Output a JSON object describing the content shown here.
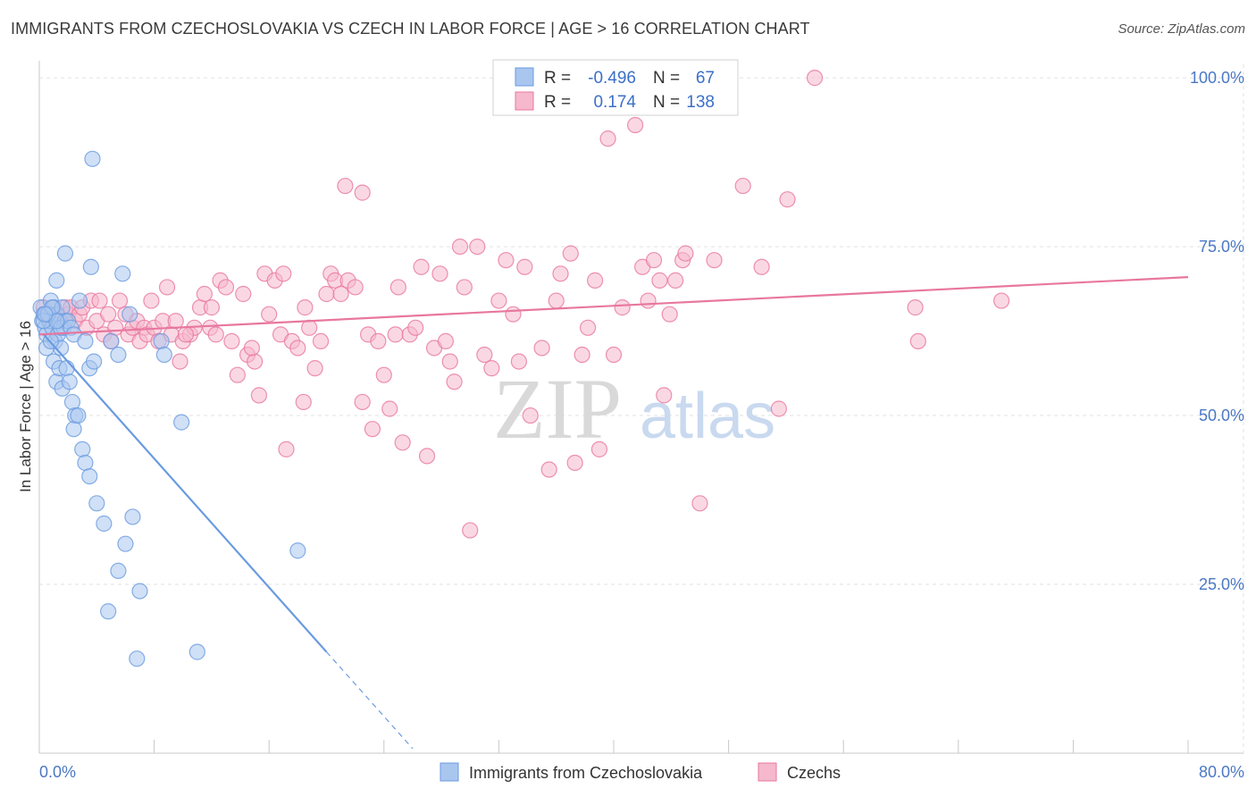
{
  "header": {
    "title": "IMMIGRANTS FROM CZECHOSLOVAKIA VS CZECH IN LABOR FORCE | AGE > 16 CORRELATION CHART",
    "source": "Source: ZipAtlas.com"
  },
  "stats": [
    {
      "r_label": "R =",
      "r_value": "-0.496",
      "n_label": "N =",
      "n_value": "67",
      "color": "#a9c6ef"
    },
    {
      "r_label": "R =",
      "r_value": "0.174",
      "n_label": "N =",
      "n_value": "138",
      "color": "#f6b8cc"
    }
  ],
  "watermark": {
    "zip": "ZIP",
    "atlas": "atlas"
  },
  "chart_data": {
    "type": "scatter",
    "ylabel": "In Labor Force | Age > 16",
    "xlim": [
      0,
      80
    ],
    "ylim": [
      0,
      102
    ],
    "x_tick_labels": [
      "0.0%",
      "80.0%"
    ],
    "y_ticks": [
      25,
      50,
      75,
      100
    ],
    "y_tick_labels": [
      "25.0%",
      "50.0%",
      "75.0%",
      "100.0%"
    ],
    "grid": true,
    "legend_position": "bottom-center",
    "series": [
      {
        "name": "Immigrants from Czechoslovakia",
        "color": "#6a9be0",
        "fill": "#a9c6ef",
        "trend": {
          "x0": 0.3,
          "y0": 62,
          "x1": 20.0,
          "y1": 15.0,
          "dash_x_end": 26.0
        },
        "points": [
          [
            0.1,
            66
          ],
          [
            0.2,
            64
          ],
          [
            0.3,
            65
          ],
          [
            0.4,
            63
          ],
          [
            0.5,
            62
          ],
          [
            0.6,
            65
          ],
          [
            0.7,
            64
          ],
          [
            0.8,
            67
          ],
          [
            0.9,
            63
          ],
          [
            1.0,
            66
          ],
          [
            1.1,
            61
          ],
          [
            1.2,
            65
          ],
          [
            1.3,
            62
          ],
          [
            1.4,
            64
          ],
          [
            1.5,
            60
          ],
          [
            1.6,
            66
          ],
          [
            1.7,
            63
          ],
          [
            1.8,
            64
          ],
          [
            0.5,
            60
          ],
          [
            0.8,
            61
          ],
          [
            1.0,
            58
          ],
          [
            1.2,
            55
          ],
          [
            1.4,
            57
          ],
          [
            1.6,
            54
          ],
          [
            1.9,
            57
          ],
          [
            2.1,
            55
          ],
          [
            2.3,
            52
          ],
          [
            2.5,
            50
          ],
          [
            1.5,
            63
          ],
          [
            2.0,
            64
          ],
          [
            2.2,
            63
          ],
          [
            2.4,
            62
          ],
          [
            2.8,
            67
          ],
          [
            3.2,
            61
          ],
          [
            3.5,
            57
          ],
          [
            3.8,
            58
          ],
          [
            1.2,
            70
          ],
          [
            1.8,
            74
          ],
          [
            2.4,
            48
          ],
          [
            2.7,
            50
          ],
          [
            3.0,
            45
          ],
          [
            3.2,
            43
          ],
          [
            3.5,
            41
          ],
          [
            4.0,
            37
          ],
          [
            4.5,
            34
          ],
          [
            3.7,
            88
          ],
          [
            3.6,
            72
          ],
          [
            5.0,
            61
          ],
          [
            5.5,
            59
          ],
          [
            5.8,
            71
          ],
          [
            6.3,
            65
          ],
          [
            6.5,
            35
          ],
          [
            5.5,
            27
          ],
          [
            6.0,
            31
          ],
          [
            7.0,
            24
          ],
          [
            4.8,
            21
          ],
          [
            6.8,
            14
          ],
          [
            8.5,
            61
          ],
          [
            8.7,
            59
          ],
          [
            9.9,
            49
          ],
          [
            11.0,
            15
          ],
          [
            18.0,
            30
          ],
          [
            0.3,
            64
          ],
          [
            0.6,
            65
          ],
          [
            0.9,
            66
          ],
          [
            1.2,
            64
          ],
          [
            0.4,
            65
          ]
        ]
      },
      {
        "name": "Czechs",
        "color": "#e8779f",
        "fill": "#f6b8cc",
        "trend": {
          "x0": 0.0,
          "y0": 62.0,
          "x1": 80.0,
          "y1": 70.5
        },
        "points": [
          [
            0.3,
            66
          ],
          [
            0.5,
            65
          ],
          [
            0.8,
            64
          ],
          [
            1.0,
            66
          ],
          [
            1.2,
            65
          ],
          [
            1.5,
            64
          ],
          [
            1.8,
            66
          ],
          [
            2.0,
            65
          ],
          [
            2.2,
            66
          ],
          [
            2.5,
            64
          ],
          [
            2.8,
            65
          ],
          [
            3.0,
            66
          ],
          [
            3.3,
            63
          ],
          [
            3.6,
            67
          ],
          [
            4.0,
            64
          ],
          [
            4.2,
            67
          ],
          [
            4.5,
            62
          ],
          [
            4.8,
            65
          ],
          [
            5.0,
            61
          ],
          [
            5.3,
            63
          ],
          [
            5.6,
            67
          ],
          [
            6.0,
            65
          ],
          [
            6.2,
            62
          ],
          [
            6.5,
            63
          ],
          [
            6.8,
            64
          ],
          [
            7.0,
            61
          ],
          [
            7.3,
            63
          ],
          [
            7.5,
            62
          ],
          [
            7.8,
            67
          ],
          [
            8.0,
            63
          ],
          [
            8.3,
            61
          ],
          [
            8.6,
            64
          ],
          [
            8.9,
            69
          ],
          [
            9.2,
            62
          ],
          [
            9.5,
            64
          ],
          [
            9.8,
            58
          ],
          [
            10.0,
            61
          ],
          [
            10.5,
            62
          ],
          [
            10.8,
            63
          ],
          [
            11.2,
            66
          ],
          [
            11.5,
            68
          ],
          [
            11.9,
            63
          ],
          [
            12.3,
            62
          ],
          [
            12.6,
            70
          ],
          [
            13.0,
            69
          ],
          [
            13.4,
            61
          ],
          [
            13.8,
            56
          ],
          [
            14.2,
            68
          ],
          [
            14.5,
            59
          ],
          [
            15.0,
            58
          ],
          [
            15.3,
            53
          ],
          [
            15.7,
            71
          ],
          [
            16.0,
            65
          ],
          [
            16.4,
            70
          ],
          [
            16.8,
            62
          ],
          [
            17.2,
            45
          ],
          [
            17.6,
            61
          ],
          [
            18.0,
            60
          ],
          [
            18.4,
            52
          ],
          [
            18.8,
            63
          ],
          [
            19.2,
            57
          ],
          [
            19.6,
            61
          ],
          [
            20.0,
            68
          ],
          [
            20.3,
            71
          ],
          [
            20.6,
            70
          ],
          [
            21.0,
            68
          ],
          [
            21.5,
            70
          ],
          [
            22.0,
            69
          ],
          [
            22.5,
            52
          ],
          [
            22.9,
            62
          ],
          [
            23.2,
            48
          ],
          [
            23.6,
            61
          ],
          [
            24.0,
            56
          ],
          [
            24.4,
            51
          ],
          [
            24.8,
            62
          ],
          [
            25.3,
            46
          ],
          [
            25.8,
            62
          ],
          [
            26.2,
            63
          ],
          [
            26.6,
            72
          ],
          [
            27.0,
            44
          ],
          [
            27.5,
            60
          ],
          [
            27.9,
            71
          ],
          [
            28.3,
            61
          ],
          [
            28.6,
            58
          ],
          [
            28.9,
            55
          ],
          [
            29.3,
            75
          ],
          [
            29.6,
            69
          ],
          [
            30.0,
            33
          ],
          [
            30.5,
            75
          ],
          [
            31.0,
            59
          ],
          [
            31.5,
            57
          ],
          [
            32.0,
            67
          ],
          [
            32.5,
            73
          ],
          [
            33.0,
            65
          ],
          [
            33.4,
            58
          ],
          [
            33.8,
            72
          ],
          [
            34.2,
            50
          ],
          [
            35.0,
            60
          ],
          [
            35.5,
            42
          ],
          [
            36.0,
            67
          ],
          [
            36.3,
            71
          ],
          [
            37.0,
            74
          ],
          [
            37.3,
            43
          ],
          [
            37.8,
            59
          ],
          [
            38.2,
            63
          ],
          [
            38.7,
            70
          ],
          [
            39.0,
            45
          ],
          [
            39.6,
            91
          ],
          [
            40.0,
            59
          ],
          [
            40.6,
            66
          ],
          [
            41.5,
            93
          ],
          [
            42.0,
            72
          ],
          [
            42.4,
            67
          ],
          [
            42.8,
            73
          ],
          [
            43.2,
            70
          ],
          [
            43.5,
            53
          ],
          [
            43.9,
            65
          ],
          [
            44.3,
            70
          ],
          [
            44.8,
            73
          ],
          [
            45.0,
            74
          ],
          [
            46.0,
            37
          ],
          [
            47.0,
            73
          ],
          [
            49.0,
            84
          ],
          [
            50.3,
            72
          ],
          [
            51.5,
            51
          ],
          [
            52.1,
            82
          ],
          [
            54.0,
            100
          ],
          [
            61.0,
            66
          ],
          [
            61.2,
            61
          ],
          [
            67.0,
            67
          ],
          [
            25.0,
            69
          ],
          [
            21.3,
            84
          ],
          [
            22.5,
            83
          ],
          [
            17.0,
            71
          ],
          [
            18.5,
            66
          ],
          [
            14.8,
            60
          ],
          [
            12.0,
            66
          ],
          [
            10.2,
            62
          ]
        ]
      }
    ]
  }
}
